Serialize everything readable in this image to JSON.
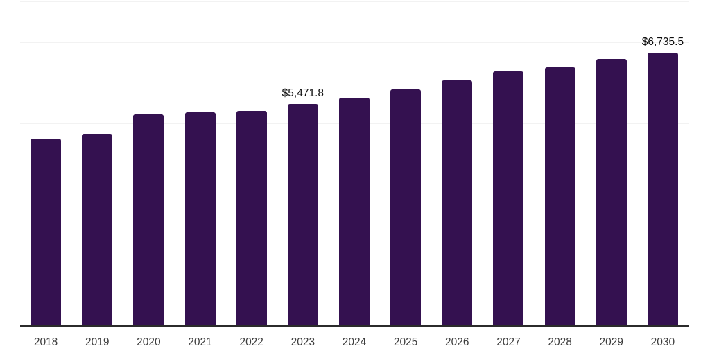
{
  "chart_data": {
    "type": "bar",
    "categories": [
      "2018",
      "2019",
      "2020",
      "2021",
      "2022",
      "2023",
      "2024",
      "2025",
      "2026",
      "2027",
      "2028",
      "2029",
      "2030"
    ],
    "values": [
      4610,
      4740,
      5215,
      5270,
      5300,
      5471.8,
      5630,
      5830,
      6045,
      6270,
      6380,
      6585,
      6735.5
    ],
    "title": "",
    "xlabel": "",
    "ylabel": "",
    "ylim": [
      0,
      8000
    ],
    "grid_interval": 1000,
    "grid": true,
    "legend": false,
    "annotations": [
      {
        "category": "2023",
        "text": "$5,471.8"
      },
      {
        "category": "2030",
        "text": "$6,735.5"
      }
    ],
    "colors": {
      "bar": "#341150",
      "axis_line": "#2b2b2b",
      "gridline": "#f2f2f2",
      "tick_label": "#3d3d3d",
      "data_label": "#0d0d0d",
      "background": "#ffffff"
    }
  }
}
